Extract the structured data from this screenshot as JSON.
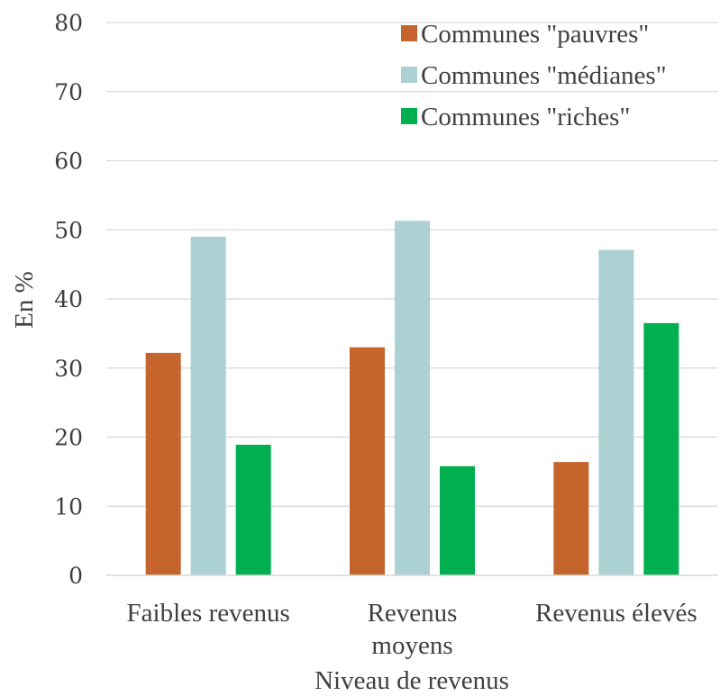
{
  "chart_data": {
    "type": "bar",
    "title": "",
    "xlabel": "Niveau de revenus",
    "ylabel": "En %",
    "categories": [
      [
        "Faibles revenus"
      ],
      [
        "Revenus",
        "moyens"
      ],
      [
        "Revenus élevés"
      ]
    ],
    "series": [
      {
        "name": "Communes \"pauvres\"",
        "color": "#c5652d",
        "values": [
          32.2,
          33.0,
          16.4
        ]
      },
      {
        "name": "Communes \"médianes\"",
        "color": "#abd1d3",
        "values": [
          49.0,
          51.3,
          47.1
        ]
      },
      {
        "name": "Communes \"riches\"",
        "color": "#00b050",
        "values": [
          18.9,
          15.8,
          36.5
        ]
      }
    ],
    "ylim": [
      0,
      80
    ],
    "yticks": [
      0,
      10,
      20,
      30,
      40,
      50,
      60,
      70,
      80
    ],
    "grid": true,
    "legend_position": "top-right"
  }
}
